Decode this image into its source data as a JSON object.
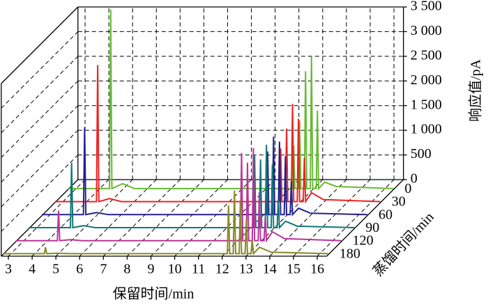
{
  "chart_data": {
    "type": "waterfall",
    "x_label": "保留时间/min",
    "y_label": "响应值/pA",
    "z_label": "蒸馏时间/min",
    "xlim": [
      2.7,
      16.4
    ],
    "xticks": [
      3,
      4,
      5,
      6,
      7,
      8,
      9,
      10,
      11,
      12,
      13,
      14,
      15,
      16
    ],
    "ylim": [
      0,
      3500
    ],
    "yticks": [
      0,
      500,
      {
        "value": 1000,
        "label": "1 000"
      },
      {
        "value": 1500,
        "label": "1 500"
      },
      {
        "value": 2000,
        "label": "2 000"
      },
      {
        "value": 2500,
        "label": "2 500"
      },
      {
        "value": 3000,
        "label": "3 000"
      },
      {
        "value": 3500,
        "label": "3 500"
      }
    ],
    "grid": true,
    "x": [
      2.7,
      4.45,
      4.5,
      4.55,
      5.0,
      5.5,
      12.0,
      12.15,
      12.2,
      12.25,
      12.4,
      12.45,
      12.5,
      12.65,
      12.7,
      12.75,
      12.9,
      12.95,
      13.0,
      13.15,
      13.2,
      13.25,
      13.5,
      14.0,
      16.4
    ],
    "series": [
      {
        "name": "0",
        "color": "#66bb33",
        "values": [
          20,
          20,
          3650,
          20,
          120,
          20,
          20,
          20,
          900,
          20,
          20,
          1400,
          20,
          20,
          2400,
          20,
          20,
          2700,
          20,
          20,
          1600,
          20,
          150,
          60,
          20
        ]
      },
      {
        "name": "30",
        "color": "#ee2222",
        "values": [
          20,
          20,
          2790,
          20,
          80,
          20,
          20,
          20,
          1100,
          20,
          20,
          1500,
          20,
          20,
          2000,
          20,
          20,
          1700,
          20,
          20,
          900,
          20,
          200,
          60,
          20
        ]
      },
      {
        "name": "60",
        "color": "#22228f",
        "values": [
          20,
          20,
          1790,
          20,
          60,
          20,
          20,
          20,
          1300,
          20,
          20,
          1600,
          20,
          20,
          1500,
          20,
          20,
          1200,
          20,
          20,
          700,
          20,
          150,
          50,
          20
        ]
      },
      {
        "name": "90",
        "color": "#117777",
        "values": [
          20,
          20,
          1340,
          20,
          60,
          20,
          20,
          20,
          1500,
          20,
          20,
          1400,
          20,
          20,
          1700,
          20,
          20,
          1300,
          20,
          20,
          600,
          20,
          150,
          50,
          20
        ]
      },
      {
        "name": "120",
        "color": "#bb3399",
        "values": [
          20,
          20,
          630,
          20,
          40,
          20,
          20,
          20,
          1800,
          20,
          20,
          1600,
          20,
          20,
          1900,
          20,
          20,
          1000,
          20,
          20,
          500,
          20,
          200,
          60,
          20
        ]
      },
      {
        "name": "180",
        "color": "#888822",
        "values": [
          20,
          20,
          150,
          20,
          30,
          20,
          20,
          20,
          1000,
          20,
          20,
          1300,
          20,
          20,
          1100,
          20,
          20,
          700,
          20,
          20,
          300,
          20,
          150,
          50,
          20
        ]
      }
    ]
  }
}
